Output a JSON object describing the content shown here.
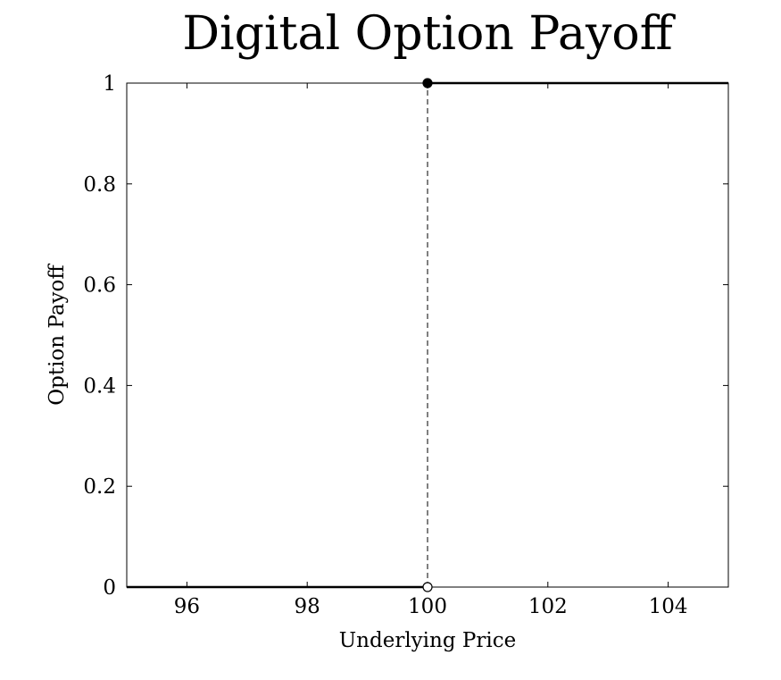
{
  "chart_data": {
    "type": "line",
    "title": "Digital Option Payoff",
    "xlabel": "Underlying Price",
    "ylabel": "Option Payoff",
    "xlim": [
      95,
      105
    ],
    "ylim": [
      0,
      1
    ],
    "xticks": [
      96,
      98,
      100,
      102,
      104
    ],
    "yticks": [
      0,
      0.2,
      0.4,
      0.6,
      0.8,
      1
    ],
    "xtick_labels": [
      "96",
      "98",
      "100",
      "102",
      "104"
    ],
    "ytick_labels": [
      "0",
      "0.2",
      "0.4",
      "0.6",
      "0.8",
      "1"
    ],
    "grid": false,
    "series": [
      {
        "segments": [
          {
            "x": [
              95,
              100
            ],
            "y": [
              0,
              0
            ]
          },
          {
            "x": [
              100,
              105
            ],
            "y": [
              1,
              1
            ]
          }
        ],
        "color": "#000000"
      }
    ],
    "jump_line": {
      "x": 100,
      "y": [
        0,
        1
      ],
      "style": "dashed"
    },
    "points": [
      {
        "x": 100,
        "y": 1,
        "filled": true
      },
      {
        "x": 100,
        "y": 0,
        "filled": false
      }
    ]
  }
}
